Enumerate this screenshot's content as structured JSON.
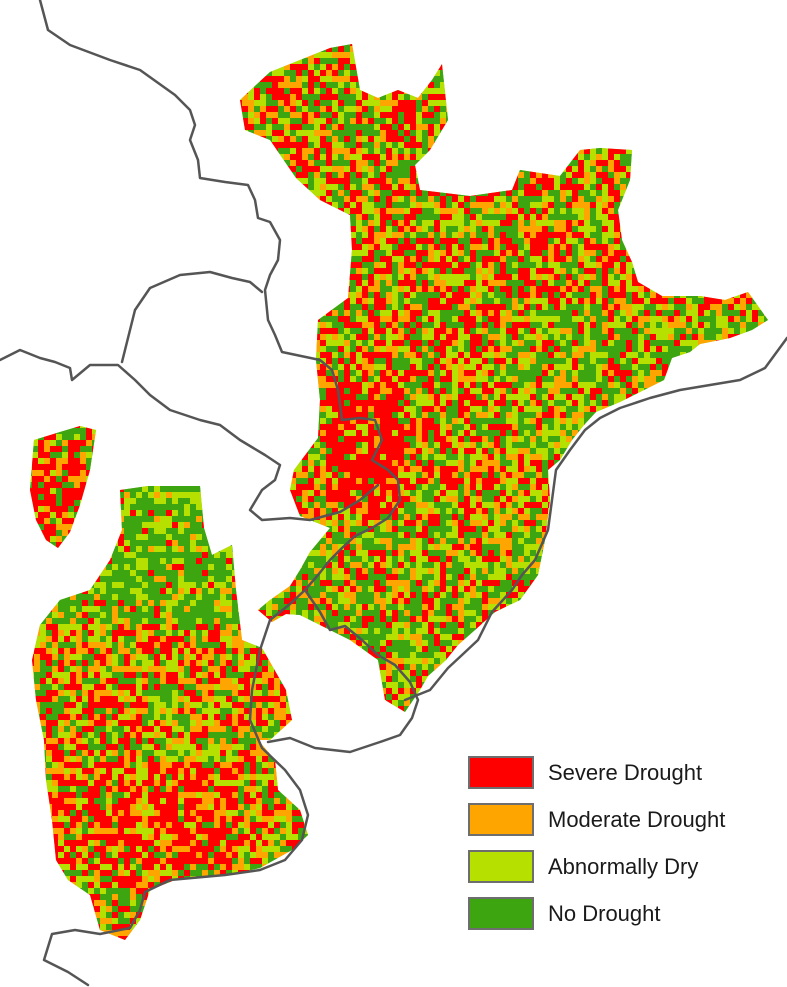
{
  "map": {
    "legend": [
      {
        "label": "Severe Drought",
        "color": "#ff0000"
      },
      {
        "label": "Moderate Drought",
        "color": "#ffa500"
      },
      {
        "label": "Abnormally Dry",
        "color": "#b5e000"
      },
      {
        "label": "No Drought",
        "color": "#3ca50f"
      }
    ],
    "border_color": "#555555",
    "background_color": "#ffffff"
  }
}
